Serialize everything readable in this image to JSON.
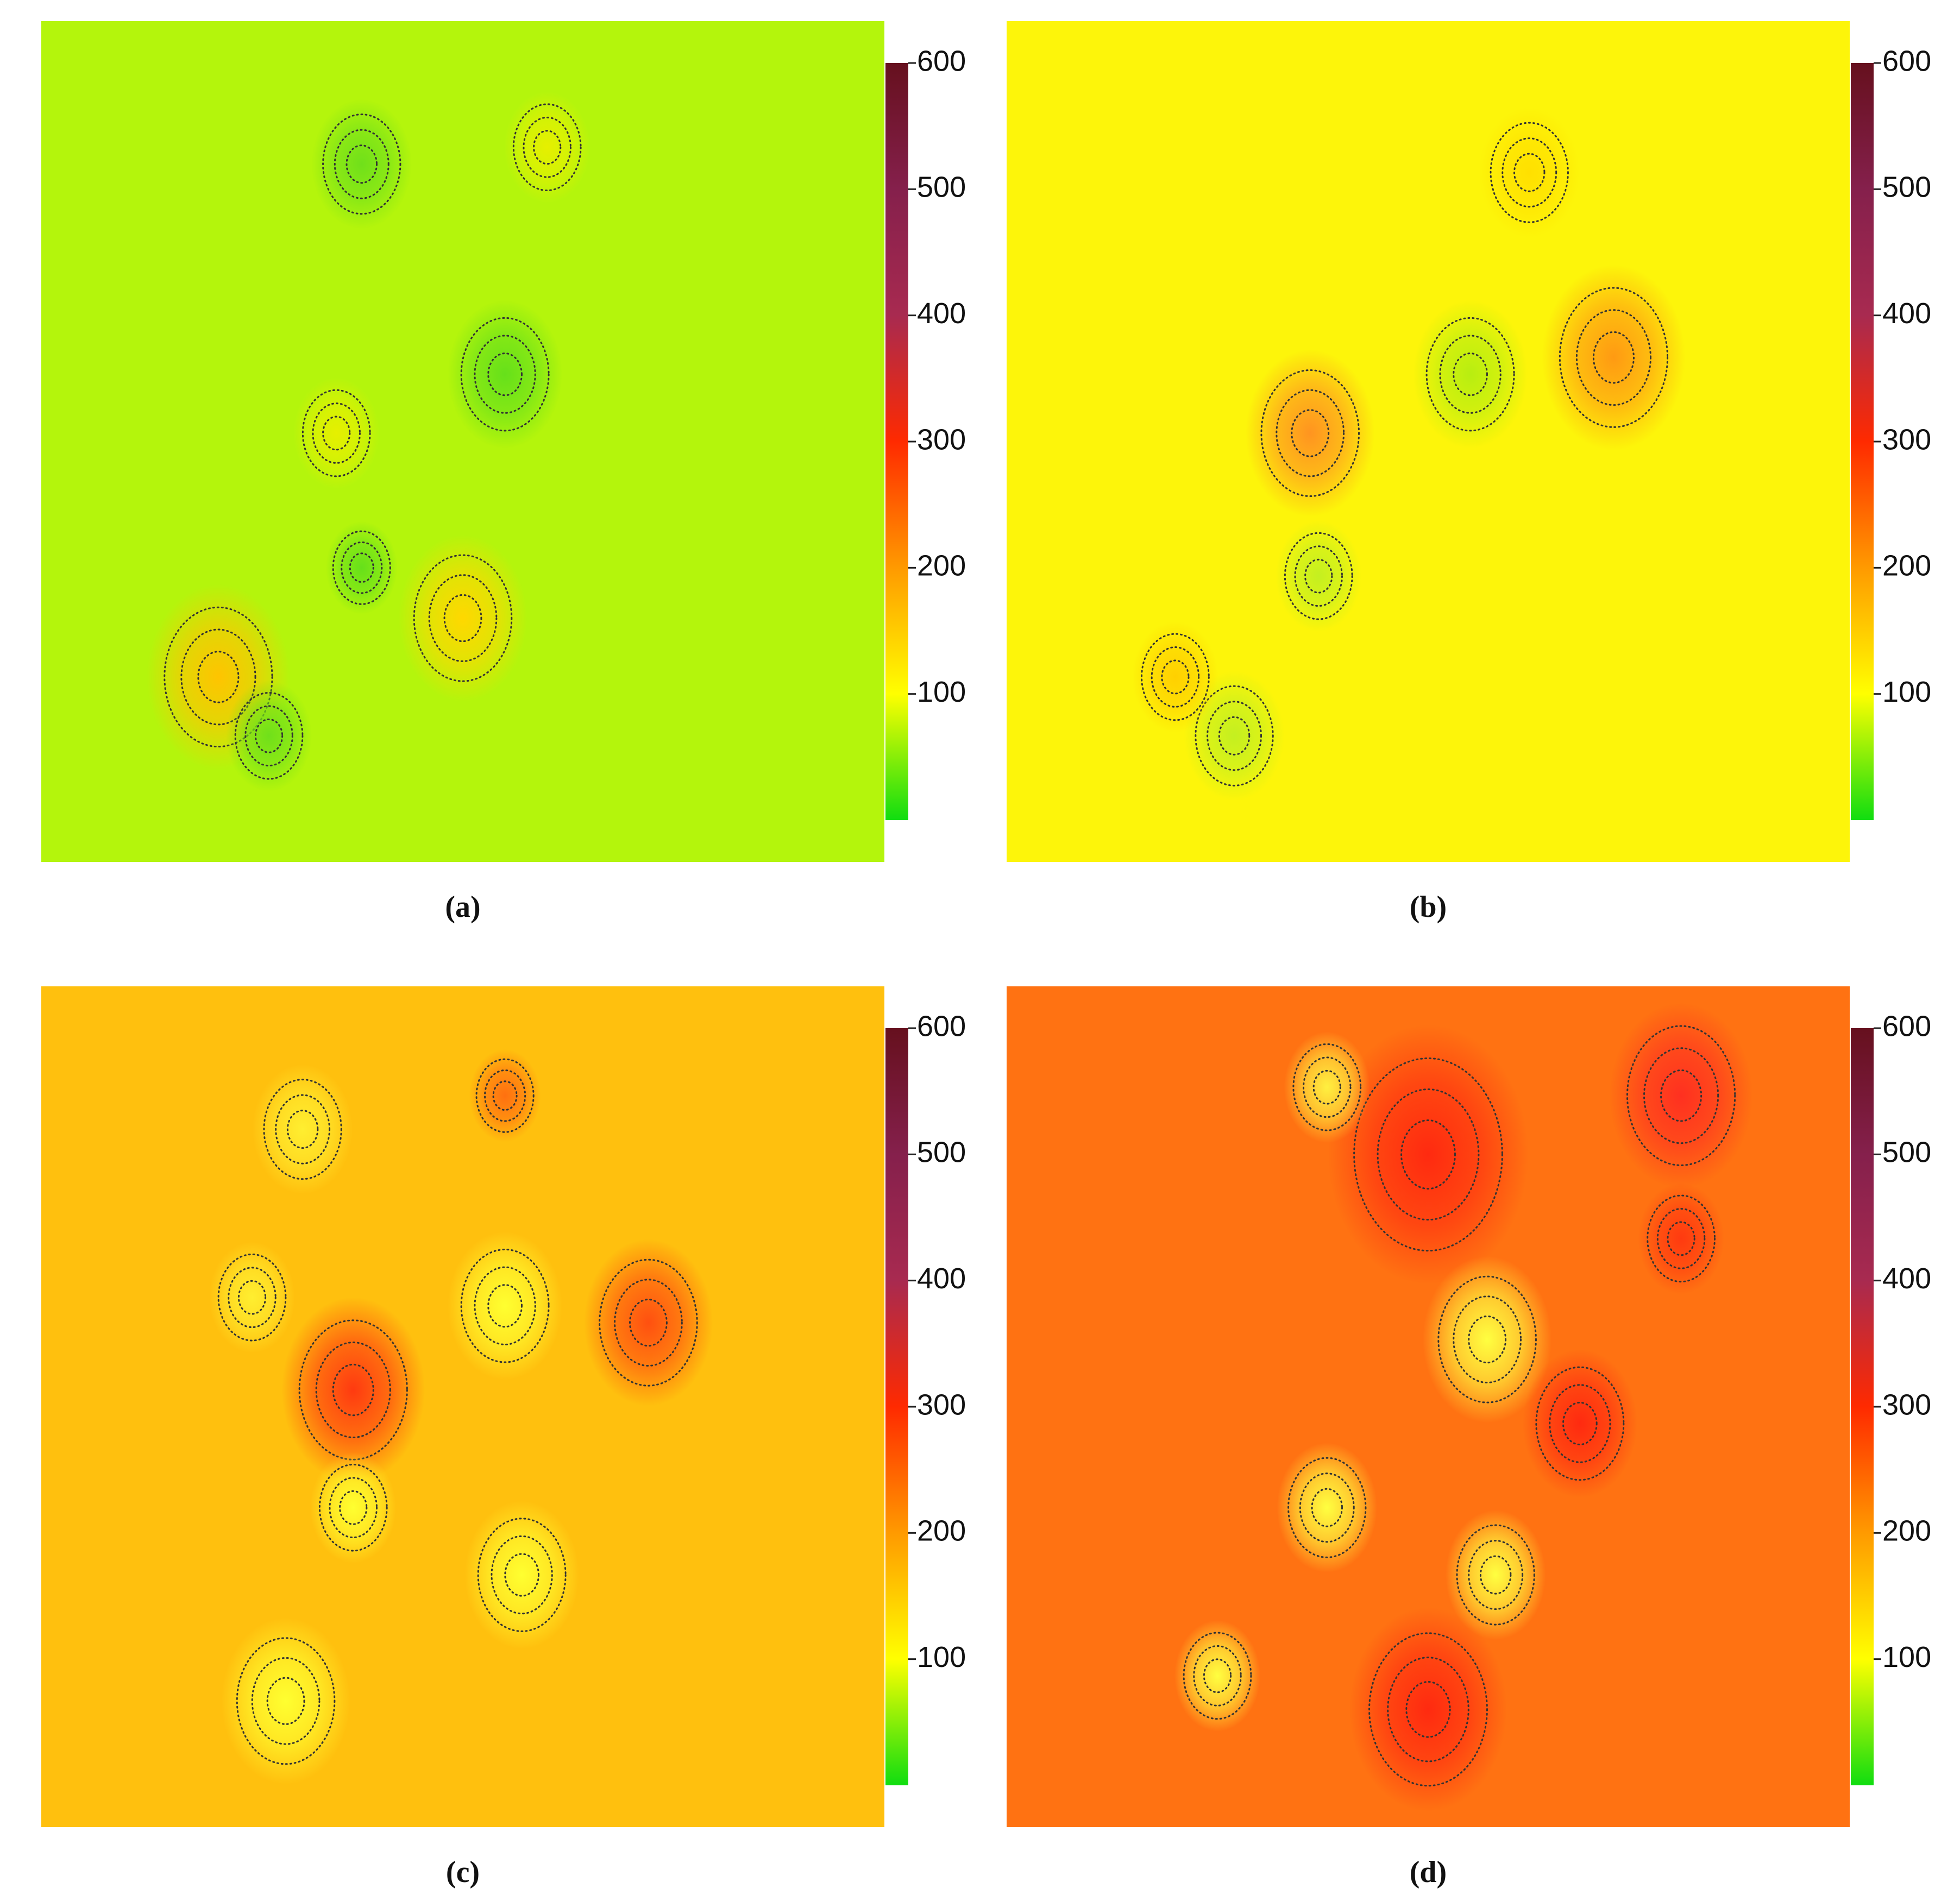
{
  "chart_data": [
    {
      "type": "heatmap",
      "caption": "(a)",
      "background": "#b4f50c",
      "ylim": [
        0,
        600
      ],
      "yticks": [
        100,
        200,
        300,
        400,
        500,
        600
      ],
      "colors": [
        "#10dd10",
        "#ffff00",
        "#ff9a00",
        "#ff2a00",
        "#a82a50",
        "#85204c",
        "#66101e"
      ]
    },
    {
      "type": "heatmap",
      "caption": "(b)",
      "background": "#fdf50a",
      "ylim": [
        0,
        600
      ],
      "yticks": [
        100,
        200,
        300,
        400,
        500,
        600
      ],
      "colors": [
        "#10dd10",
        "#ffff00",
        "#ff9a00",
        "#ff2a00",
        "#a82a50",
        "#85204c",
        "#66101e"
      ]
    },
    {
      "type": "heatmap",
      "caption": "(c)",
      "background": "#ffc00e",
      "ylim": [
        0,
        600
      ],
      "yticks": [
        100,
        200,
        300,
        400,
        500,
        600
      ],
      "colors": [
        "#10dd10",
        "#ffff00",
        "#ff9a00",
        "#ff2a00",
        "#a82a50",
        "#85204c",
        "#66101e"
      ]
    },
    {
      "type": "heatmap",
      "caption": "(d)",
      "background": "#ff7212",
      "ylim": [
        0,
        600
      ],
      "yticks": [
        100,
        200,
        300,
        400,
        500,
        600
      ],
      "colors": [
        "#10dd10",
        "#ffff00",
        "#ff9a00",
        "#ff2a00",
        "#a82a50",
        "#85204c",
        "#66101e"
      ]
    }
  ]
}
